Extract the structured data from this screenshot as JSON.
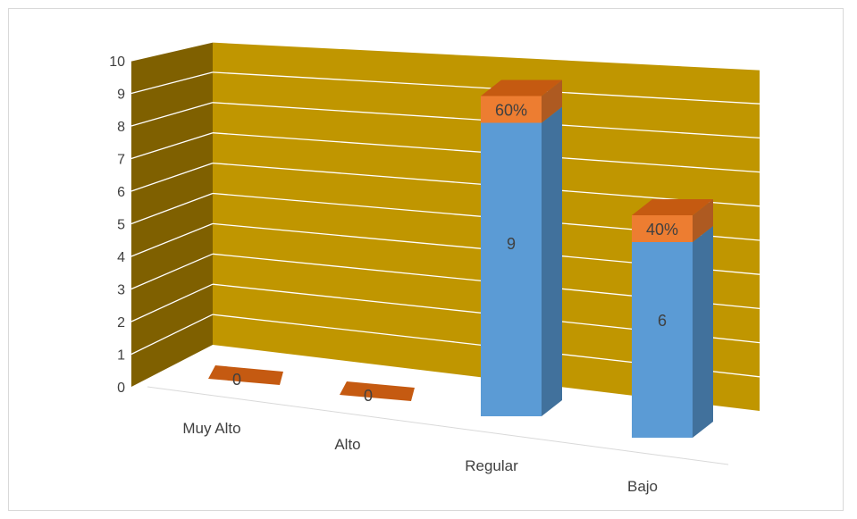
{
  "chart_data": {
    "type": "bar",
    "style": "3d-stacked-column",
    "categories": [
      "Muy Alto",
      "Alto",
      "Regular",
      "Bajo"
    ],
    "series": [
      {
        "values": [
          0,
          0,
          9,
          6
        ],
        "color": "#5b9bd5",
        "labels": [
          "0",
          "0",
          "9",
          "6"
        ]
      },
      {
        "values": [
          0,
          0,
          0.6,
          0.4
        ],
        "color": "#ed7d31",
        "labels": [
          "",
          "",
          "60%",
          "40%"
        ]
      }
    ],
    "ylim": [
      0,
      10
    ],
    "yticks": [
      "0",
      "1",
      "2",
      "3",
      "4",
      "5",
      "6",
      "7",
      "8",
      "9",
      "10"
    ],
    "grid": true,
    "wall_color": "#c09600",
    "side_wall_color": "#7f6000",
    "floor_marker_color": "#c55a11",
    "title": "",
    "xlabel": "",
    "ylabel": ""
  }
}
